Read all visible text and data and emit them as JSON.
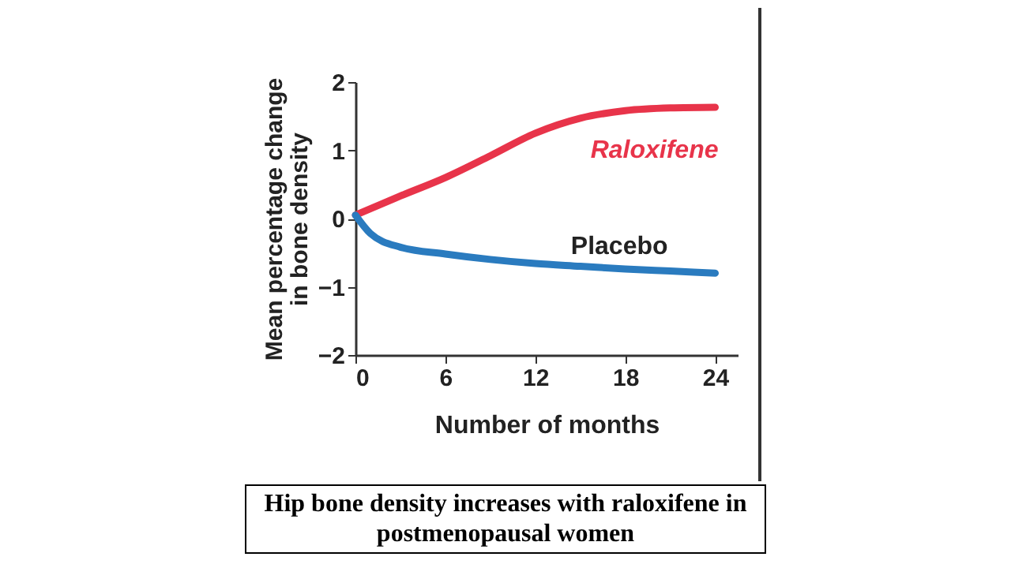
{
  "chart_data": {
    "type": "line",
    "xlabel": "Number of months",
    "ylabel": "Mean percentage change in bone density",
    "annotations": [
      "Hip bone density increases with raloxifene in postmenopausal women"
    ],
    "xlim": [
      0,
      25.5
    ],
    "xticks": [
      0,
      6,
      12,
      18,
      24
    ],
    "ylim": [
      -2,
      2
    ],
    "yticks": [
      -2,
      -1,
      0,
      1,
      2
    ],
    "grid": false,
    "legend": false,
    "marker": "none",
    "line_style": "solid",
    "series": [
      {
        "name": "Raloxifene",
        "color": "#e8344a",
        "x": [
          0,
          3,
          6,
          9,
          12,
          15,
          18,
          21,
          24
        ],
        "values": [
          0.05,
          0.33,
          0.6,
          0.92,
          1.25,
          1.47,
          1.58,
          1.62,
          1.63
        ]
      },
      {
        "name": "Placebo",
        "color": "#2a7bbf",
        "x": [
          0,
          1,
          3,
          6,
          9,
          12,
          15,
          18,
          21,
          24
        ],
        "values": [
          0.05,
          -0.22,
          -0.42,
          -0.52,
          -0.6,
          -0.66,
          -0.7,
          -0.74,
          -0.77,
          -0.8
        ]
      }
    ]
  }
}
